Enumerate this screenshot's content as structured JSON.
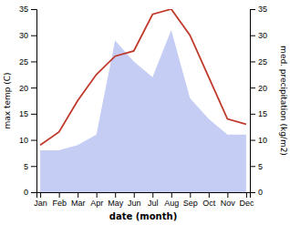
{
  "chart_data": {
    "type": "line",
    "categories": [
      "Jan",
      "Feb",
      "Mar",
      "Apr",
      "May",
      "Jun",
      "Jul",
      "Aug",
      "Sep",
      "Oct",
      "Nov",
      "Dec"
    ],
    "series": [
      {
        "type": "area",
        "color": "#c5cdf5",
        "axis": "y2",
        "values": [
          8.0,
          8.0,
          9.0,
          11.0,
          29.0,
          25.0,
          22.0,
          31.0,
          18.0,
          14.0,
          11.0,
          11.0
        ]
      },
      {
        "type": "line",
        "color": "#c0392b",
        "values": [
          9.0,
          11.5,
          17.5,
          22.5,
          26.0,
          27.0,
          34.0,
          35.0,
          30.0,
          22.0,
          14.0,
          13.0
        ]
      }
    ],
    "xlabel": "date (month)",
    "ylabel": "max temp (C)",
    "y2label": "med. precipitation (kg/m2)",
    "ylim": [
      0,
      35
    ],
    "yticks": [
      0,
      5,
      10,
      15,
      20,
      25,
      30,
      35
    ],
    "y2lim": [
      0,
      35
    ],
    "y2ticks": [
      0,
      5,
      10,
      15,
      20,
      25,
      30,
      35
    ],
    "grid": false
  }
}
